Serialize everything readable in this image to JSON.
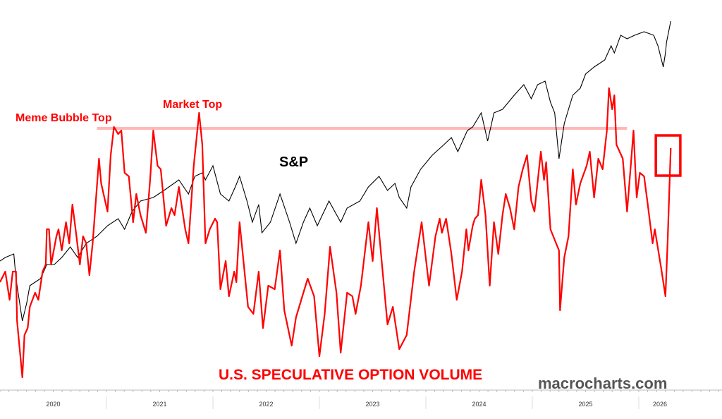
{
  "chart_data": {
    "type": "line",
    "title": "U.S. SPECULATIVE OPTION VOLUME",
    "xlabel": "",
    "ylabel": "",
    "xlim": [
      2020.0,
      2026.75
    ],
    "ylim": [
      0,
      112
    ],
    "grid": false,
    "y_axis_labels_shown": false,
    "x_ticks": [
      "2020",
      "2021",
      "2022",
      "2023",
      "2024",
      "2025",
      "2026"
    ],
    "annotations": [
      {
        "id": "meme",
        "text": "Meme Bubble Top",
        "color": "#ff0000"
      },
      {
        "id": "market",
        "text": "Market Top",
        "color": "#ff0000"
      },
      {
        "id": "sp",
        "text": "S&P",
        "color": "#000000"
      }
    ],
    "watermark": "macrocharts.com",
    "reference_line": {
      "value": 75.6,
      "x_from": 2020.91,
      "x_to": 2025.89,
      "color": "#ffb8b8"
    },
    "highlight_box": {
      "x_from": 2026.16,
      "x_to": 2026.39,
      "y_from": 62.2,
      "y_to": 73.6,
      "color": "#ff0000"
    },
    "series": [
      {
        "name": "U.S. Speculative Option Volume",
        "color": "#ff0000",
        "points": [
          [
            2020.0,
            32
          ],
          [
            2020.05,
            35
          ],
          [
            2020.09,
            27
          ],
          [
            2020.12,
            35
          ],
          [
            2020.15,
            35
          ],
          [
            2020.16,
            21
          ],
          [
            2020.21,
            5
          ],
          [
            2020.23,
            17
          ],
          [
            2020.26,
            19
          ],
          [
            2020.28,
            25
          ],
          [
            2020.33,
            29
          ],
          [
            2020.36,
            27
          ],
          [
            2020.4,
            35
          ],
          [
            2020.43,
            37
          ],
          [
            2020.44,
            47
          ],
          [
            2020.46,
            47
          ],
          [
            2020.48,
            37
          ],
          [
            2020.53,
            45
          ],
          [
            2020.55,
            47
          ],
          [
            2020.58,
            41
          ],
          [
            2020.62,
            49
          ],
          [
            2020.65,
            43
          ],
          [
            2020.68,
            54
          ],
          [
            2020.71,
            47
          ],
          [
            2020.75,
            37
          ],
          [
            2020.78,
            45
          ],
          [
            2020.81,
            43
          ],
          [
            2020.84,
            34
          ],
          [
            2020.87,
            43
          ],
          [
            2020.89,
            51
          ],
          [
            2020.93,
            67
          ],
          [
            2020.95,
            60
          ],
          [
            2021.01,
            52
          ],
          [
            2021.04,
            68
          ],
          [
            2021.07,
            76
          ],
          [
            2021.11,
            74
          ],
          [
            2021.14,
            75
          ],
          [
            2021.17,
            63
          ],
          [
            2021.21,
            62
          ],
          [
            2021.25,
            49
          ],
          [
            2021.28,
            57
          ],
          [
            2021.32,
            51
          ],
          [
            2021.37,
            46
          ],
          [
            2021.41,
            61
          ],
          [
            2021.44,
            75
          ],
          [
            2021.48,
            65
          ],
          [
            2021.51,
            64
          ],
          [
            2021.56,
            48
          ],
          [
            2021.61,
            53
          ],
          [
            2021.64,
            51
          ],
          [
            2021.68,
            59
          ],
          [
            2021.71,
            53
          ],
          [
            2021.74,
            47
          ],
          [
            2021.77,
            43
          ],
          [
            2021.82,
            65
          ],
          [
            2021.87,
            80
          ],
          [
            2021.9,
            71
          ],
          [
            2021.93,
            43
          ],
          [
            2021.97,
            47
          ],
          [
            2022.02,
            50
          ],
          [
            2022.04,
            49
          ],
          [
            2022.07,
            30
          ],
          [
            2022.12,
            38
          ],
          [
            2022.15,
            28
          ],
          [
            2022.2,
            35
          ],
          [
            2022.22,
            32
          ],
          [
            2022.25,
            49
          ],
          [
            2022.28,
            40
          ],
          [
            2022.33,
            25
          ],
          [
            2022.38,
            23
          ],
          [
            2022.43,
            35
          ],
          [
            2022.47,
            19
          ],
          [
            2022.52,
            31
          ],
          [
            2022.58,
            30
          ],
          [
            2022.63,
            41
          ],
          [
            2022.67,
            24
          ],
          [
            2022.74,
            14
          ],
          [
            2022.78,
            22
          ],
          [
            2022.85,
            29
          ],
          [
            2022.89,
            33
          ],
          [
            2022.95,
            28
          ],
          [
            2023.0,
            11
          ],
          [
            2023.05,
            23
          ],
          [
            2023.1,
            42
          ],
          [
            2023.16,
            29
          ],
          [
            2023.2,
            12
          ],
          [
            2023.26,
            29
          ],
          [
            2023.31,
            28
          ],
          [
            2023.34,
            23
          ],
          [
            2023.39,
            31
          ],
          [
            2023.46,
            49
          ],
          [
            2023.5,
            38
          ],
          [
            2023.54,
            53
          ],
          [
            2023.6,
            33
          ],
          [
            2023.64,
            20
          ],
          [
            2023.69,
            25
          ],
          [
            2023.75,
            13
          ],
          [
            2023.82,
            17
          ],
          [
            2023.89,
            35
          ],
          [
            2023.96,
            49
          ],
          [
            2024.03,
            31
          ],
          [
            2024.09,
            45
          ],
          [
            2024.13,
            50
          ],
          [
            2024.15,
            46
          ],
          [
            2024.19,
            50
          ],
          [
            2024.24,
            40
          ],
          [
            2024.29,
            27
          ],
          [
            2024.34,
            35
          ],
          [
            2024.38,
            47
          ],
          [
            2024.4,
            41
          ],
          [
            2024.44,
            48
          ],
          [
            2024.46,
            50
          ],
          [
            2024.49,
            51
          ],
          [
            2024.52,
            61
          ],
          [
            2024.56,
            51
          ],
          [
            2024.6,
            31
          ],
          [
            2024.64,
            49
          ],
          [
            2024.68,
            40
          ],
          [
            2024.72,
            51
          ],
          [
            2024.75,
            57
          ],
          [
            2024.79,
            53
          ],
          [
            2024.83,
            47
          ],
          [
            2024.87,
            59
          ],
          [
            2024.91,
            64
          ],
          [
            2024.95,
            68
          ],
          [
            2024.99,
            55
          ],
          [
            2025.02,
            52
          ],
          [
            2025.08,
            69
          ],
          [
            2025.11,
            61
          ],
          [
            2025.13,
            66
          ],
          [
            2025.17,
            47
          ],
          [
            2025.21,
            44
          ],
          [
            2025.25,
            41
          ],
          [
            2025.26,
            24
          ],
          [
            2025.3,
            39
          ],
          [
            2025.34,
            45
          ],
          [
            2025.38,
            64
          ],
          [
            2025.41,
            54
          ],
          [
            2025.45,
            60
          ],
          [
            2025.51,
            65
          ],
          [
            2025.54,
            69
          ],
          [
            2025.58,
            56
          ],
          [
            2025.62,
            67
          ],
          [
            2025.66,
            64
          ],
          [
            2025.7,
            75
          ],
          [
            2025.72,
            87
          ],
          [
            2025.75,
            81
          ],
          [
            2025.77,
            85
          ],
          [
            2025.79,
            71
          ],
          [
            2025.85,
            67
          ],
          [
            2025.89,
            52
          ],
          [
            2025.93,
            67
          ],
          [
            2025.95,
            75
          ],
          [
            2025.98,
            56
          ],
          [
            2026.01,
            63
          ],
          [
            2026.05,
            62
          ],
          [
            2026.08,
            55
          ],
          [
            2026.13,
            43
          ],
          [
            2026.15,
            47
          ],
          [
            2026.21,
            36
          ],
          [
            2026.25,
            28
          ],
          [
            2026.27,
            43
          ],
          [
            2026.3,
            70
          ]
        ]
      },
      {
        "name": "S&P",
        "color": "#000000",
        "points": [
          [
            2020.0,
            38
          ],
          [
            2020.05,
            39
          ],
          [
            2020.13,
            40
          ],
          [
            2020.15,
            33
          ],
          [
            2020.21,
            21
          ],
          [
            2020.25,
            26
          ],
          [
            2020.28,
            31
          ],
          [
            2020.38,
            33
          ],
          [
            2020.44,
            37
          ],
          [
            2020.51,
            37
          ],
          [
            2020.58,
            39
          ],
          [
            2020.66,
            42
          ],
          [
            2020.73,
            39
          ],
          [
            2020.81,
            43
          ],
          [
            2020.91,
            45
          ],
          [
            2021.01,
            48
          ],
          [
            2021.11,
            50
          ],
          [
            2021.17,
            47
          ],
          [
            2021.24,
            52
          ],
          [
            2021.32,
            55
          ],
          [
            2021.44,
            56
          ],
          [
            2021.54,
            58
          ],
          [
            2021.68,
            61
          ],
          [
            2021.77,
            57
          ],
          [
            2021.83,
            62
          ],
          [
            2021.9,
            63
          ],
          [
            2021.93,
            61
          ],
          [
            2022.0,
            65
          ],
          [
            2022.07,
            57
          ],
          [
            2022.15,
            55
          ],
          [
            2022.21,
            59
          ],
          [
            2022.25,
            62
          ],
          [
            2022.32,
            55
          ],
          [
            2022.37,
            49
          ],
          [
            2022.43,
            54
          ],
          [
            2022.46,
            46
          ],
          [
            2022.54,
            49
          ],
          [
            2022.63,
            57
          ],
          [
            2022.72,
            49
          ],
          [
            2022.78,
            43
          ],
          [
            2022.85,
            49
          ],
          [
            2022.91,
            53
          ],
          [
            2022.98,
            48
          ],
          [
            2023.09,
            55
          ],
          [
            2023.2,
            49
          ],
          [
            2023.26,
            53
          ],
          [
            2023.38,
            55
          ],
          [
            2023.46,
            59
          ],
          [
            2023.56,
            62
          ],
          [
            2023.64,
            58
          ],
          [
            2023.71,
            60
          ],
          [
            2023.75,
            56
          ],
          [
            2023.82,
            53
          ],
          [
            2023.86,
            59
          ],
          [
            2023.95,
            64
          ],
          [
            2024.06,
            68
          ],
          [
            2024.17,
            71
          ],
          [
            2024.24,
            73
          ],
          [
            2024.3,
            69
          ],
          [
            2024.39,
            75
          ],
          [
            2024.44,
            76
          ],
          [
            2024.52,
            80
          ],
          [
            2024.58,
            72
          ],
          [
            2024.64,
            80
          ],
          [
            2024.72,
            81
          ],
          [
            2024.83,
            85
          ],
          [
            2024.92,
            88
          ],
          [
            2024.99,
            84
          ],
          [
            2025.05,
            88
          ],
          [
            2025.12,
            89
          ],
          [
            2025.17,
            83
          ],
          [
            2025.21,
            80
          ],
          [
            2025.25,
            67
          ],
          [
            2025.3,
            77
          ],
          [
            2025.34,
            81
          ],
          [
            2025.38,
            85
          ],
          [
            2025.45,
            87
          ],
          [
            2025.5,
            91
          ],
          [
            2025.58,
            93
          ],
          [
            2025.68,
            95
          ],
          [
            2025.74,
            99
          ],
          [
            2025.77,
            97
          ],
          [
            2025.83,
            102
          ],
          [
            2025.89,
            101
          ],
          [
            2025.96,
            102
          ],
          [
            2026.05,
            103
          ],
          [
            2026.14,
            102
          ],
          [
            2026.18,
            99
          ],
          [
            2026.23,
            93
          ],
          [
            2026.25,
            97
          ],
          [
            2026.26,
            100
          ],
          [
            2026.3,
            106
          ]
        ]
      }
    ]
  }
}
